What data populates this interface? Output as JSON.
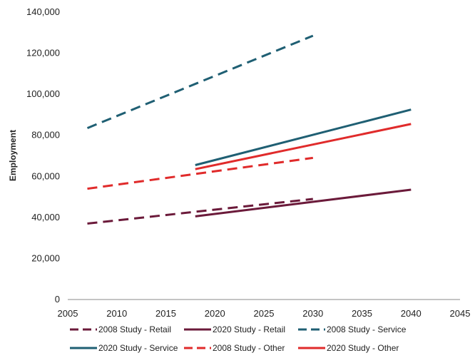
{
  "chart_data": {
    "type": "line",
    "title": "",
    "xlabel": "",
    "ylabel": "Employment",
    "xlim": [
      2005,
      2045
    ],
    "ylim": [
      0,
      140000
    ],
    "x_ticks": [
      2005,
      2010,
      2015,
      2020,
      2025,
      2030,
      2035,
      2040,
      2045
    ],
    "y_ticks": [
      0,
      20000,
      40000,
      60000,
      80000,
      100000,
      120000,
      140000
    ],
    "y_tick_labels": [
      "0",
      "20,000",
      "40,000",
      "60,000",
      "80,000",
      "100,000",
      "120,000",
      "140,000"
    ],
    "grid": false,
    "legend_position": "bottom",
    "series": [
      {
        "name": "2008 Study - Retail",
        "color": "#6b1a3a",
        "dash": "dashed",
        "x": [
          2007,
          2030
        ],
        "y": [
          37000,
          49000
        ]
      },
      {
        "name": "2020 Study - Retail",
        "color": "#6b1a3a",
        "dash": "solid",
        "x": [
          2018,
          2040
        ],
        "y": [
          40500,
          53500
        ]
      },
      {
        "name": "2008 Study - Service",
        "color": "#1f5f73",
        "dash": "dashed",
        "x": [
          2007,
          2030
        ],
        "y": [
          83500,
          128500
        ]
      },
      {
        "name": "2020 Study - Service",
        "color": "#1f5f73",
        "dash": "solid",
        "x": [
          2018,
          2040
        ],
        "y": [
          65500,
          92500
        ]
      },
      {
        "name": "2008 Study - Other",
        "color": "#e02b2b",
        "dash": "dashed",
        "x": [
          2007,
          2030
        ],
        "y": [
          54000,
          69000
        ]
      },
      {
        "name": "2020 Study - Other",
        "color": "#e02b2b",
        "dash": "solid",
        "x": [
          2018,
          2040
        ],
        "y": [
          63500,
          85500
        ]
      }
    ]
  }
}
